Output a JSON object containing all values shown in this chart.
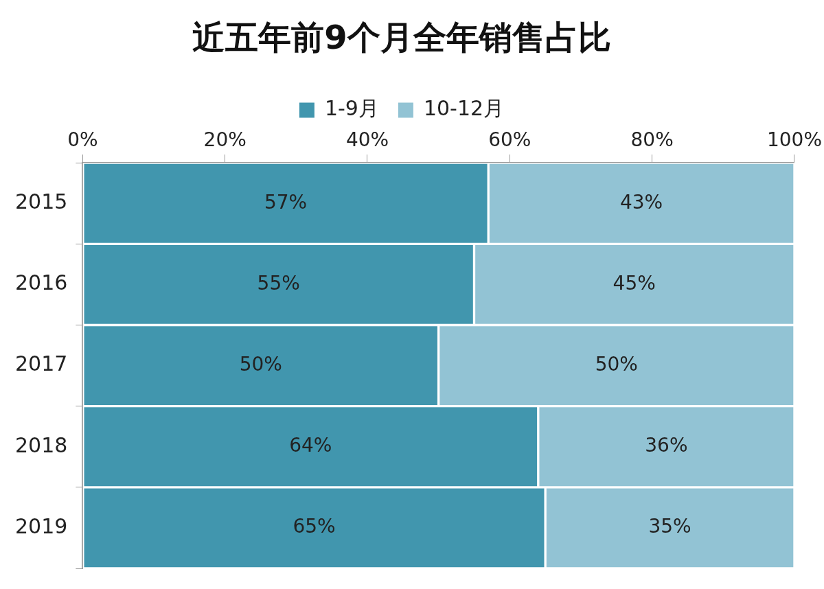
{
  "chart_data": {
    "type": "bar",
    "title": "近五年前9个月全年销售占比",
    "orientation": "horizontal",
    "stacked": true,
    "categories": [
      "2015",
      "2016",
      "2017",
      "2018",
      "2019"
    ],
    "series": [
      {
        "name": "1-9月",
        "color": "#4196ae",
        "values": [
          57,
          55,
          50,
          64,
          65
        ],
        "value_labels": [
          "57%",
          "55%",
          "50%",
          "64%",
          "65%"
        ]
      },
      {
        "name": "10-12月",
        "color": "#92c3d4",
        "values": [
          43,
          45,
          50,
          36,
          35
        ],
        "value_labels": [
          "43%",
          "45%",
          "50%",
          "36%",
          "35%"
        ]
      }
    ],
    "xlim": [
      0,
      100
    ],
    "xticks": [
      {
        "value": 0,
        "label": "0%"
      },
      {
        "value": 20,
        "label": "20%"
      },
      {
        "value": 40,
        "label": "40%"
      },
      {
        "value": 60,
        "label": "60%"
      },
      {
        "value": 80,
        "label": "80%"
      },
      {
        "value": 100,
        "label": "100%"
      }
    ],
    "legend": "top"
  }
}
